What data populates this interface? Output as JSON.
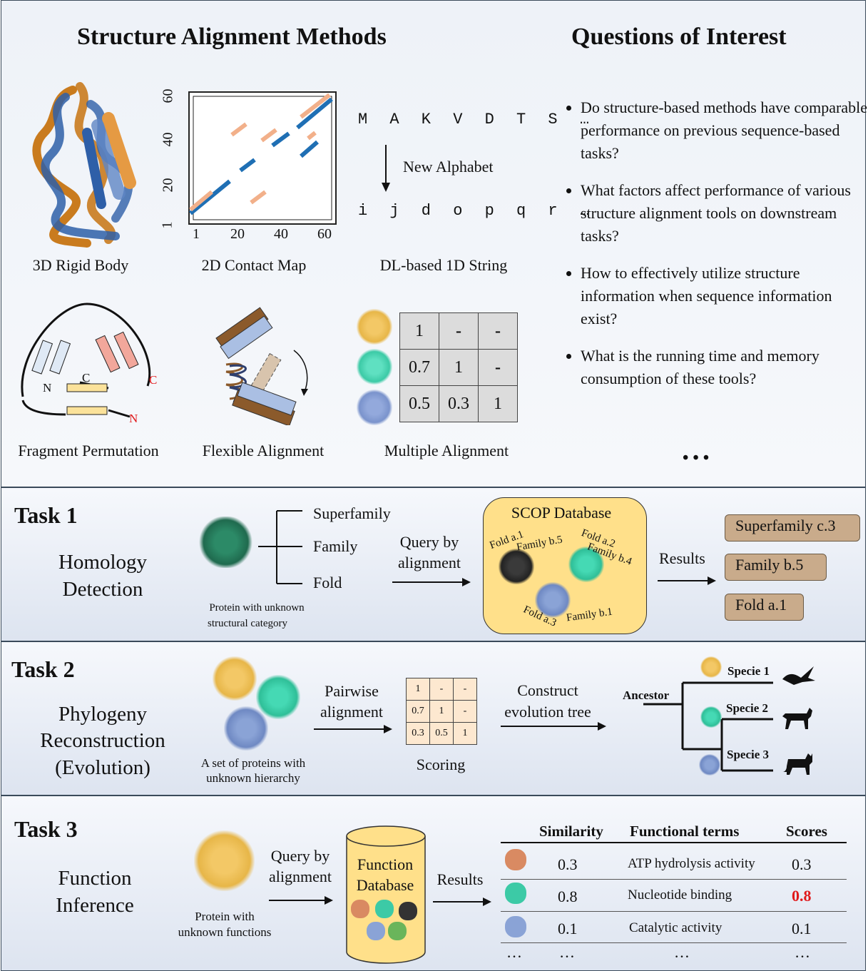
{
  "top": {
    "left_title": "Structure Alignment Methods",
    "right_title": "Questions of Interest",
    "methods": {
      "rigid": "3D Rigid Body",
      "contact": "2D Contact Map",
      "dl": "DL-based 1D String",
      "frag": "Fragment Permutation",
      "flex": "Flexible Alignment",
      "multi": "Multiple Alignment"
    },
    "contact_map": {
      "x_ticks": [
        "1",
        "20",
        "40",
        "60"
      ],
      "y_ticks": [
        "1",
        "20",
        "40",
        "60"
      ]
    },
    "dl_string": {
      "seq": "M A K V D T S …",
      "arrow_label": "New Alphabet",
      "new": "i j d o p q r …"
    },
    "frag_labels": {
      "n1": "N",
      "c1": "C",
      "c2": "C",
      "n2": "N"
    },
    "multi_matrix": [
      [
        "1",
        "-",
        "-"
      ],
      [
        "0.7",
        "1",
        "-"
      ],
      [
        "0.5",
        "0.3",
        "1"
      ]
    ],
    "questions": [
      "Do structure-based methods have comparable performance on previous sequence-based tasks?",
      "What factors affect performance of various structure alignment tools on downstream tasks?",
      "How to effectively utilize structure information when sequence information exist?",
      "What is the running time and memory consumption of these tools?"
    ],
    "ellipsis": "• • •"
  },
  "task1": {
    "title": "Task 1",
    "name_l1": "Homology",
    "name_l2": "Detection",
    "levels": [
      "Superfamily",
      "Family",
      "Fold"
    ],
    "protein_caption_l1": "Protein with unknown",
    "protein_caption_l2": "structural category",
    "arrow1_l1": "Query by",
    "arrow1_l2": "alignment",
    "db_title": "SCOP Database",
    "db_labels": {
      "a": "Fold a.1",
      "b": "Family b.5",
      "c": "Fold a.2",
      "d": "Family b.4",
      "e": "Fold a.3",
      "f": "Family b.1"
    },
    "results_label": "Results",
    "results": [
      "Superfamily c.3",
      "Family b.5",
      "Fold a.1"
    ]
  },
  "task2": {
    "title": "Task 2",
    "name_l1": "Phylogeny",
    "name_l2": "Reconstruction",
    "name_l3": "(Evolution)",
    "caption_l1": "A set of proteins with",
    "caption_l2": "unknown hierarchy",
    "arrow1_l1": "Pairwise",
    "arrow1_l2": "alignment",
    "matrix": [
      [
        "1",
        "-",
        "-"
      ],
      [
        "0.7",
        "1",
        "-"
      ],
      [
        "0.3",
        "0.5",
        "1"
      ]
    ],
    "scoring": "Scoring",
    "arrow2_l1": "Construct",
    "arrow2_l2": "evolution tree",
    "ancestor": "Ancestor",
    "species": [
      "Specie 1",
      "Specie 2",
      "Specie 3"
    ]
  },
  "task3": {
    "title": "Task 3",
    "name_l1": "Function",
    "name_l2": "Inference",
    "caption_l1": "Protein with",
    "caption_l2": "unknown functions",
    "arrow1_l1": "Query by",
    "arrow1_l2": "alignment",
    "db_l1": "Function",
    "db_l2": "Database",
    "results_label": "Results",
    "headers": [
      "Similarity",
      "Functional terms",
      "Scores"
    ],
    "rows": [
      {
        "sim": "0.3",
        "term": "ATP hydrolysis activity",
        "score": "0.3"
      },
      {
        "sim": "0.8",
        "term": "Nucleotide binding",
        "score": "0.8"
      },
      {
        "sim": "0.1",
        "term": "Catalytic activity",
        "score": "0.1"
      }
    ],
    "row_ellipsis": [
      "…",
      "…",
      "…",
      "…"
    ]
  },
  "colors": {
    "blue": "#1f6fb4",
    "salmon": "#f2b08a",
    "orange": "#c97b1e",
    "highlight": "#e0191b",
    "db_fill": "#ffe08a",
    "result_fill": "#c9ab8b"
  }
}
